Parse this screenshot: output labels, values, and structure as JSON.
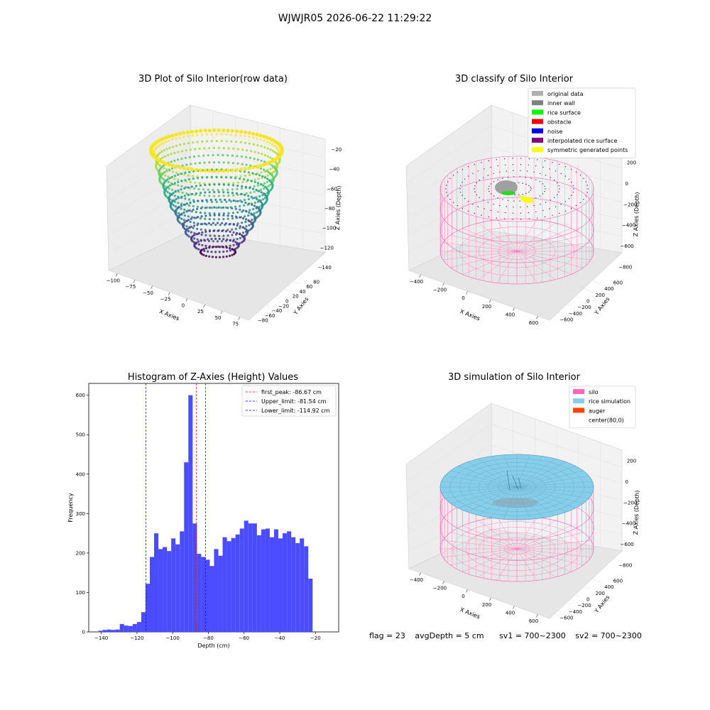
{
  "suptitle": "WJWJR05 2026-06-22 11:29:22",
  "colors": {
    "silo": "#ff69b4",
    "rice": "#87ceeb",
    "auger": "#ff4500",
    "hist": "#4b4bff",
    "peak": "#ff0000",
    "limit": "#0000ff"
  },
  "chart_data": [
    {
      "type": "scatter",
      "title": "3D Plot of Silo Interior(row data)",
      "xlabel": "X Axies",
      "ylabel": "Y Axies",
      "zlabel": "Z Axies (Depth)",
      "xticks": [
        "−100",
        "−75",
        "−50",
        "−25",
        "0",
        "25",
        "50",
        "75"
      ],
      "yticks": [
        "−80",
        "−60",
        "−40",
        "−20",
        "0",
        "20",
        "40",
        "60",
        "80"
      ],
      "zticks": [
        "−20",
        "−40",
        "−60",
        "−80",
        "−100",
        "−120",
        "−140"
      ],
      "colormap": "viridis",
      "xlim": [
        -110,
        85
      ],
      "ylim": [
        -85,
        85
      ],
      "zlim": [
        -145,
        -15
      ]
    },
    {
      "type": "scatter",
      "title": "3D classify of Silo Interior",
      "xlabel": "X Axies",
      "ylabel": "Y Axies",
      "zlabel": "Z Axies (Depth)",
      "xticks": [
        "−400",
        "−200",
        "0",
        "200",
        "400",
        "600"
      ],
      "yticks": [
        "−600",
        "−400",
        "−200",
        "0",
        "200",
        "400",
        "600"
      ],
      "zticks": [
        "200",
        "0",
        "−200",
        "−400",
        "−600",
        "−800"
      ],
      "legend_position": "top-right",
      "legend": [
        {
          "label": "original data",
          "color": "#b0b0b0"
        },
        {
          "label": "inner wall",
          "color": "#808080"
        },
        {
          "label": "rice surface",
          "color": "#00ff00"
        },
        {
          "label": "obstacle",
          "color": "#ff0000"
        },
        {
          "label": "noise",
          "color": "#0000ff"
        },
        {
          "label": "interpolated rice surface",
          "color": "#800080"
        },
        {
          "label": "symmetric generated points",
          "color": "#ffff00"
        }
      ]
    },
    {
      "type": "bar",
      "title": "Histogram of Z-Axies (Height) Values",
      "xlabel": "Depth (cm)",
      "ylabel": "Frequency",
      "xlim": [
        -147,
        -7
      ],
      "ylim": [
        0,
        630
      ],
      "xticks": [
        -140,
        -120,
        -100,
        -80,
        -60,
        -40,
        -20
      ],
      "yticks": [
        0,
        100,
        200,
        300,
        400,
        500,
        600
      ],
      "bin_start": -141.6,
      "bin_width": 2.4,
      "values": [
        3,
        5,
        6,
        5,
        6,
        20,
        16,
        15,
        20,
        25,
        50,
        122,
        190,
        250,
        210,
        215,
        205,
        237,
        222,
        255,
        430,
        600,
        275,
        198,
        190,
        183,
        167,
        210,
        193,
        240,
        230,
        238,
        247,
        262,
        282,
        275,
        275,
        245,
        260,
        262,
        240,
        260,
        237,
        250,
        255,
        240,
        225,
        237,
        217,
        135
      ],
      "vlines": [
        {
          "label": "first_peak: -86.67 cm",
          "x": -86.67,
          "color": "#ff0000"
        },
        {
          "label": "Upper_limit: -81.54 cm",
          "x": -81.54,
          "color": "#0000ff"
        },
        {
          "label": "Lower_limit: -114.92 cm",
          "x": -114.92,
          "color": "#0000ff"
        }
      ],
      "legend_position": "top-right"
    },
    {
      "type": "scatter",
      "title": "3D simulation of Silo Interior",
      "xlabel": "X Axies",
      "ylabel": "Y Axies",
      "zlabel": "Z Axies (Depth)",
      "xticks": [
        "−400",
        "−200",
        "0",
        "200",
        "400",
        "600"
      ],
      "yticks": [
        "−600",
        "−400",
        "−200",
        "0",
        "200",
        "400",
        "600"
      ],
      "zticks": [
        "200",
        "0",
        "−200",
        "−400",
        "−600",
        "−800"
      ],
      "legend_position": "top-right",
      "legend": [
        {
          "label": "silo",
          "color": "#ff69b4"
        },
        {
          "label": "rice simulation",
          "color": "#87ceeb"
        },
        {
          "label": "auger",
          "color": "#ff4500"
        },
        {
          "label": "center(80,0)",
          "color": "#ffffff"
        }
      ]
    }
  ],
  "footer": {
    "flag": "flag = 23",
    "avg": "avgDepth = 5 cm",
    "sv1": "sv1 = 700~2300",
    "sv2": "sv2 = 700~2300"
  }
}
